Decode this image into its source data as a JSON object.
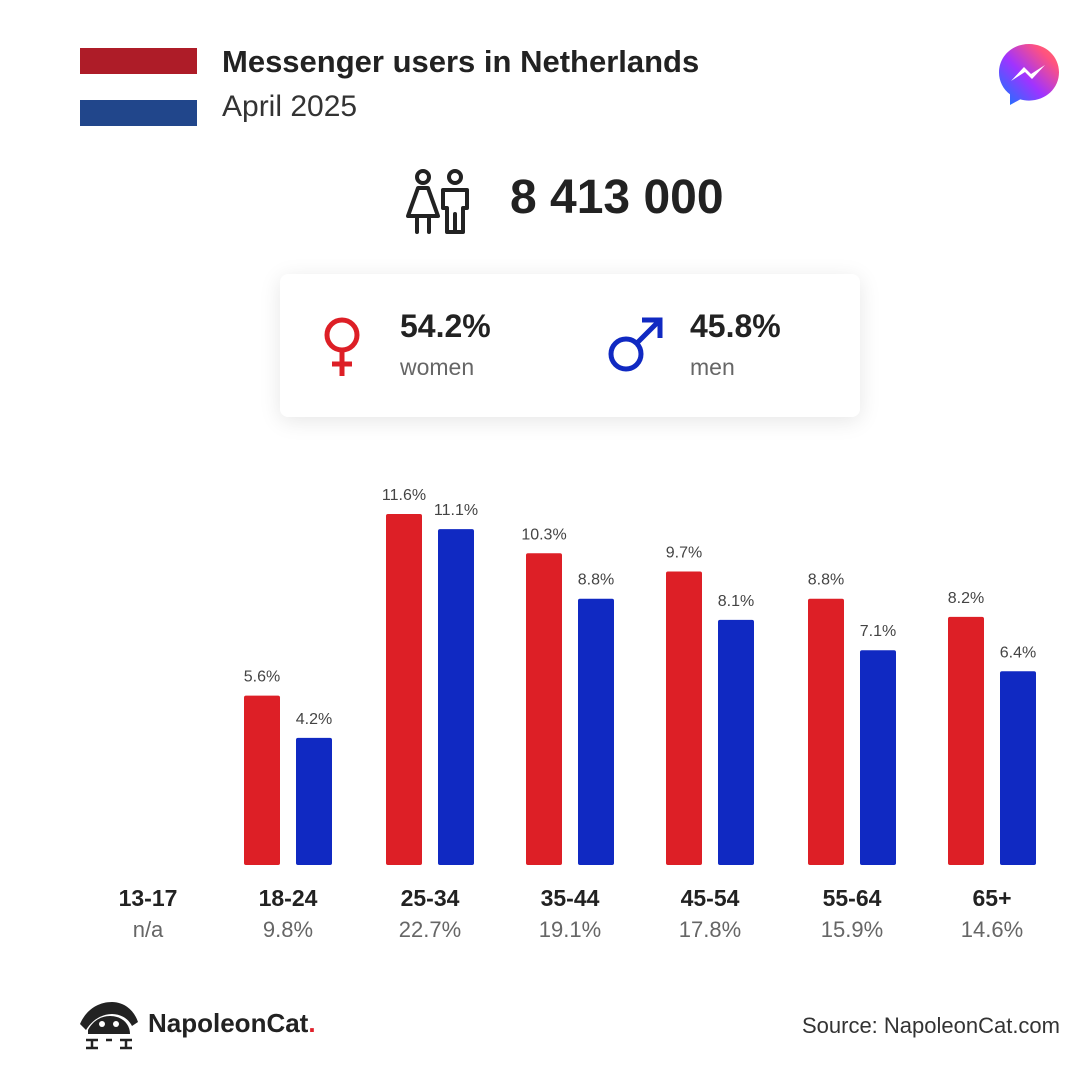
{
  "header": {
    "title": "Messenger users in Netherlands",
    "subtitle": "April 2025",
    "flag_colors": [
      "#ae1c28",
      "#ffffff",
      "#21468b"
    ],
    "flag_icon": "netherlands-flag-icon",
    "app_icon": "messenger-logo-icon"
  },
  "totals": {
    "users": "8 413 000",
    "icon": "users-icon"
  },
  "gender": {
    "women": {
      "pct": "54.2%",
      "label": "women",
      "icon": "female-symbol-icon",
      "color": "#dd1f26"
    },
    "men": {
      "pct": "45.8%",
      "label": "men",
      "icon": "male-symbol-icon",
      "color": "#1029c2"
    }
  },
  "chart_data": {
    "type": "bar",
    "categories": [
      "13-17",
      "18-24",
      "25-34",
      "35-44",
      "45-54",
      "55-64",
      "65+"
    ],
    "category_shares": [
      "n/a",
      "9.8%",
      "22.7%",
      "19.1%",
      "17.8%",
      "15.9%",
      "14.6%"
    ],
    "series": [
      {
        "values": [
          null,
          5.6,
          11.6,
          10.3,
          9.7,
          8.8,
          8.2
        ],
        "labels": [
          "",
          "5.6%",
          "11.6%",
          "10.3%",
          "9.7%",
          "8.8%",
          "8.2%"
        ],
        "color": "#dd1f26"
      },
      {
        "values": [
          null,
          4.2,
          11.1,
          8.8,
          8.1,
          7.1,
          6.4
        ],
        "labels": [
          "",
          "4.2%",
          "11.1%",
          "8.8%",
          "8.1%",
          "7.1%",
          "6.4%"
        ],
        "color": "#1029c2"
      }
    ],
    "ylim": [
      0,
      11.6
    ],
    "grid": false,
    "legend": "none"
  },
  "footer": {
    "brand_name": "NapoleonCat",
    "brand_dot": ".",
    "brand_icon": "napoleoncat-logo-icon",
    "source": "Source: NapoleonCat.com"
  }
}
